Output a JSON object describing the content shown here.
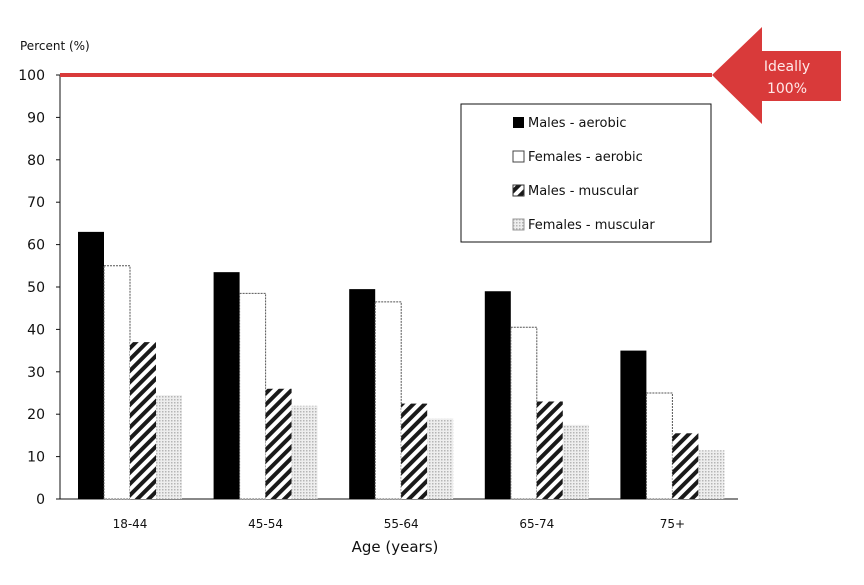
{
  "chart_data": {
    "type": "bar",
    "ylabel": "Percent (%)",
    "xlabel": "Age (years)",
    "categories": [
      "18-44",
      "45-54",
      "55-64",
      "65-74",
      "75+"
    ],
    "ylim": [
      0,
      100
    ],
    "yticks": [
      0,
      10,
      20,
      30,
      40,
      50,
      60,
      70,
      80,
      90,
      100
    ],
    "legend_position": "top-right",
    "series": [
      {
        "name": "Males - aerobic",
        "values": [
          63,
          53.5,
          49.5,
          49,
          35
        ],
        "style": "solid",
        "color": "#000000"
      },
      {
        "name": "Females - aerobic",
        "values": [
          55,
          48.5,
          46.5,
          40.5,
          25
        ],
        "style": "outline",
        "color": "#ffffff"
      },
      {
        "name": "Males - muscular",
        "values": [
          37,
          26,
          22.5,
          23,
          15.5
        ],
        "style": "diagonal-hatch",
        "color": "#222222"
      },
      {
        "name": "Females - muscular",
        "values": [
          24.5,
          22,
          19,
          17.5,
          11.5
        ],
        "style": "dotted-fill",
        "color": "#dcdcdc"
      }
    ],
    "reference_line": {
      "value": 100,
      "color": "#d93a3a"
    },
    "annotation": {
      "lines": [
        "Ideally",
        "100%"
      ],
      "color": "#d93a3a"
    }
  }
}
